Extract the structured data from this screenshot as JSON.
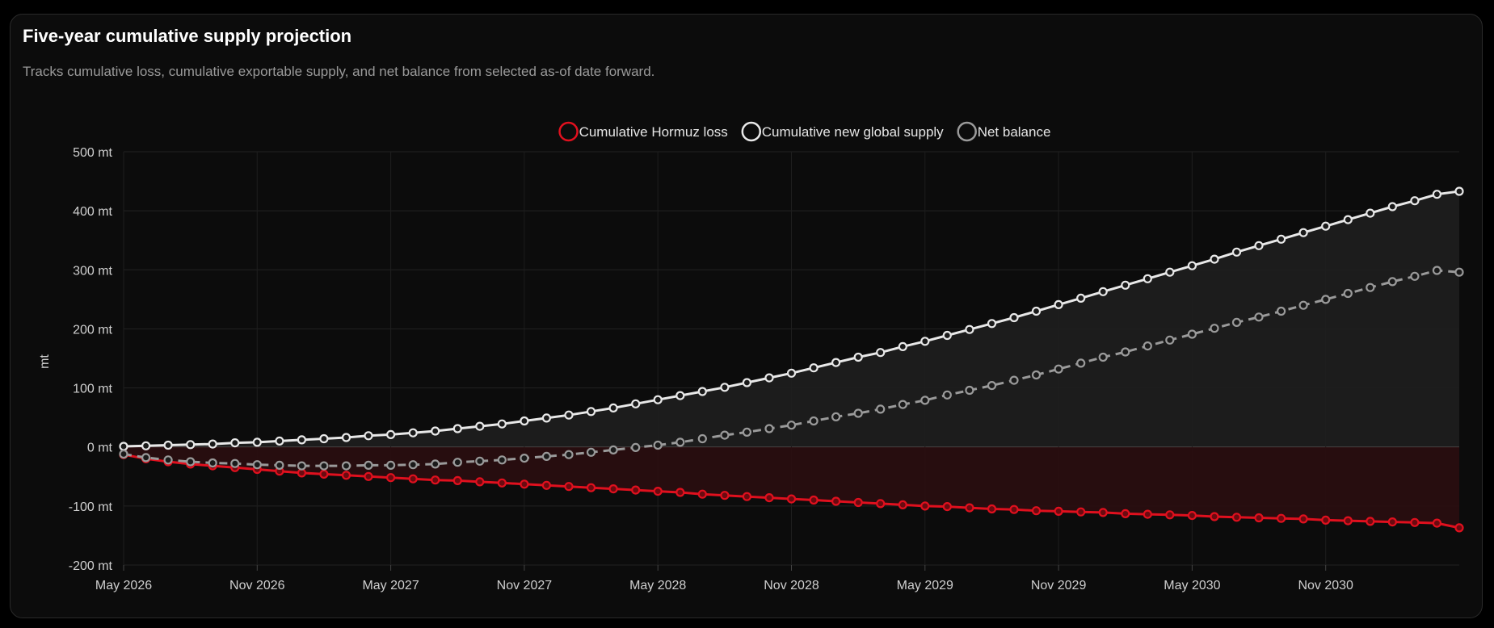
{
  "card": {
    "title": "Five-year cumulative supply projection",
    "subtitle": "Tracks cumulative loss, cumulative exportable supply, and net balance from selected as-of date forward."
  },
  "chart_data": {
    "type": "line",
    "ylabel": "mt",
    "ylim": [
      -200,
      500
    ],
    "y_ticks": [
      "500 mt",
      "400 mt",
      "300 mt",
      "200 mt",
      "100 mt",
      "0 mt",
      "-100 mt",
      "-200 mt"
    ],
    "y_tick_values": [
      500,
      400,
      300,
      200,
      100,
      0,
      -100,
      -200
    ],
    "x_start": "May 2026",
    "x_ticks": [
      "May 2026",
      "Nov 2026",
      "May 2027",
      "Nov 2027",
      "May 2028",
      "Nov 2028",
      "May 2029",
      "Nov 2029",
      "May 2030",
      "Nov 2030"
    ],
    "x_tick_month_offsets": [
      0,
      6,
      12,
      18,
      24,
      30,
      36,
      42,
      48,
      54
    ],
    "months": 60,
    "grid": true,
    "legend_position": "top-center",
    "series": [
      {
        "name": "Cumulative Hormuz loss",
        "color": "#e0101e",
        "style": "solid",
        "fill": "#2a0d10",
        "values": [
          -13,
          -20,
          -25,
          -29,
          -32,
          -35,
          -38,
          -41,
          -44,
          -46,
          -48,
          -50,
          -52,
          -54,
          -56,
          -57,
          -59,
          -61,
          -63,
          -65,
          -67,
          -69,
          -71,
          -73,
          -75,
          -77,
          -80,
          -82,
          -84,
          -86,
          -88,
          -90,
          -92,
          -94,
          -96,
          -98,
          -100,
          -101,
          -103,
          -105,
          -106,
          -108,
          -109,
          -110,
          -111,
          -113,
          -114,
          -115,
          -116,
          -118,
          -119,
          -120,
          -121,
          -122,
          -124,
          -125,
          -126,
          -127,
          -128,
          -129,
          -137
        ]
      },
      {
        "name": "Cumulative new global supply",
        "color": "#e8e8e8",
        "style": "solid",
        "fill": "#1e1e1e",
        "values": [
          1,
          2,
          3,
          4,
          5,
          7,
          8,
          10,
          12,
          14,
          16,
          19,
          21,
          24,
          27,
          31,
          35,
          39,
          44,
          49,
          54,
          60,
          66,
          73,
          80,
          87,
          94,
          101,
          109,
          117,
          125,
          134,
          143,
          152,
          160,
          170,
          179,
          189,
          199,
          209,
          219,
          230,
          241,
          252,
          263,
          274,
          285,
          296,
          307,
          318,
          330,
          341,
          352,
          363,
          374,
          385,
          396,
          407,
          417,
          428,
          433
        ]
      },
      {
        "name": "Net balance",
        "color": "#9a9a9a",
        "style": "dashed",
        "fill": "none",
        "values": [
          -12,
          -18,
          -22,
          -25,
          -27,
          -28,
          -30,
          -31,
          -32,
          -32,
          -32,
          -31,
          -31,
          -30,
          -29,
          -26,
          -24,
          -22,
          -19,
          -16,
          -13,
          -9,
          -5,
          -1,
          3,
          8,
          14,
          20,
          25,
          31,
          37,
          44,
          51,
          57,
          64,
          72,
          79,
          88,
          96,
          104,
          113,
          122,
          132,
          142,
          152,
          161,
          171,
          181,
          191,
          201,
          211,
          220,
          230,
          240,
          250,
          260,
          270,
          280,
          289,
          299,
          296
        ]
      }
    ]
  }
}
